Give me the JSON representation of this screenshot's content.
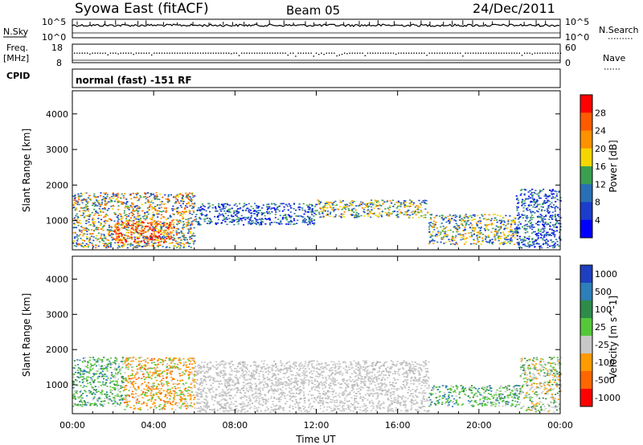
{
  "header": {
    "station": "Syowa East (fitACF)",
    "beam": "Beam 05",
    "date": "24/Dec/2011"
  },
  "panels": {
    "nsky": {
      "left_label": "N.Sky",
      "right_label": "N.Search",
      "tick_top_left": "10^5",
      "tick_bottom_left": "10^0",
      "tick_top_right": "10^5",
      "tick_bottom_right": "10^0"
    },
    "freq": {
      "left_label": "Freq.",
      "left_unit": "[MHz]",
      "right_label": "Nave",
      "tick_top_left": "18",
      "tick_bottom_left": "8",
      "tick_top_right": "60",
      "tick_bottom_right": "0"
    },
    "cpid": {
      "left_label": "CPID",
      "text": "normal (fast) -151 RF"
    }
  },
  "colorbars": {
    "power": {
      "label": "Power [dB]",
      "ticks": [
        "28",
        "24",
        "20",
        "16",
        "12",
        "8",
        "4"
      ],
      "colors": [
        "#ff0000",
        "#ff5a00",
        "#ff9000",
        "#f5d600",
        "#3aa050",
        "#2a6fb5",
        "#1a3dcc",
        "#0000ff"
      ]
    },
    "velocity": {
      "label": "Velocity [m s^-1]",
      "ticks": [
        "1000",
        "500",
        "100",
        "25",
        "-25",
        "-100",
        "-500",
        "-1000"
      ],
      "colors": [
        "#1e3fbf",
        "#2c7fb8",
        "#2e8b4a",
        "#55c83a",
        "#c8c8c8",
        "#ff9a00",
        "#ff6600",
        "#ff0000"
      ]
    }
  },
  "chart_data": [
    {
      "type": "heatmap",
      "name": "power",
      "ylabel": "Slant Range [km]",
      "x_ticks": [
        "00:00",
        "04:00",
        "08:00",
        "12:00",
        "16:00",
        "20:00",
        "00:00"
      ],
      "y_ticks": [
        "1000",
        "2000",
        "3000",
        "4000"
      ],
      "xlim_hours": [
        0,
        24
      ],
      "ylim_km": [
        180,
        4650
      ],
      "echo_regions": [
        {
          "t_start": 0.0,
          "t_end": 6.0,
          "range_min": 250,
          "range_max": 1800,
          "level": "high"
        },
        {
          "t_start": 2.0,
          "t_end": 5.0,
          "range_min": 400,
          "range_max": 1000,
          "level": "very_high"
        },
        {
          "t_start": 6.0,
          "t_end": 12.0,
          "range_min": 900,
          "range_max": 1500,
          "level": "low"
        },
        {
          "t_start": 12.0,
          "t_end": 17.5,
          "range_min": 1100,
          "range_max": 1600,
          "level": "medium"
        },
        {
          "t_start": 17.5,
          "t_end": 21.8,
          "range_min": 350,
          "range_max": 1200,
          "level": "medium"
        },
        {
          "t_start": 21.8,
          "t_end": 24.0,
          "range_min": 250,
          "range_max": 1900,
          "level": "low"
        }
      ]
    },
    {
      "type": "heatmap",
      "name": "velocity",
      "ylabel": "Slant Range [km]",
      "xlabel": "Time UT",
      "x_ticks": [
        "00:00",
        "04:00",
        "08:00",
        "12:00",
        "16:00",
        "20:00",
        "00:00"
      ],
      "y_ticks": [
        "1000",
        "2000",
        "3000",
        "4000"
      ],
      "xlim_hours": [
        0,
        24
      ],
      "ylim_km": [
        180,
        4650
      ],
      "echo_regions": [
        {
          "t_start": 0.0,
          "t_end": 2.5,
          "range_min": 400,
          "range_max": 1800,
          "class": "green"
        },
        {
          "t_start": 2.5,
          "t_end": 6.0,
          "range_min": 300,
          "range_max": 1800,
          "class": "orange"
        },
        {
          "t_start": 6.0,
          "t_end": 17.5,
          "range_min": 250,
          "range_max": 1700,
          "class": "ground"
        },
        {
          "t_start": 17.5,
          "t_end": 22.0,
          "range_min": 400,
          "range_max": 1000,
          "class": "green"
        },
        {
          "t_start": 22.0,
          "t_end": 24.0,
          "range_min": 250,
          "range_max": 1800,
          "class": "mixed"
        }
      ]
    }
  ]
}
